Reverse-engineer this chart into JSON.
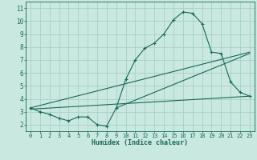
{
  "title": "",
  "xlabel": "Humidex (Indice chaleur)",
  "bg_color": "#c8e8e0",
  "grid_color": "#a8d0c8",
  "line_color": "#1a6858",
  "xlim": [
    -0.5,
    23.5
  ],
  "ylim": [
    1.5,
    11.5
  ],
  "xticks": [
    0,
    1,
    2,
    3,
    4,
    5,
    6,
    7,
    8,
    9,
    10,
    11,
    12,
    13,
    14,
    15,
    16,
    17,
    18,
    19,
    20,
    21,
    22,
    23
  ],
  "yticks": [
    2,
    3,
    4,
    5,
    6,
    7,
    8,
    9,
    10,
    11
  ],
  "line1_x": [
    0,
    1,
    2,
    3,
    4,
    5,
    6,
    7,
    8,
    9,
    10,
    11,
    12,
    13,
    14,
    15,
    16,
    17,
    18,
    19,
    20,
    21,
    22,
    23
  ],
  "line1_y": [
    3.3,
    3.0,
    2.8,
    2.5,
    2.3,
    2.6,
    2.6,
    2.0,
    1.9,
    3.3,
    5.5,
    7.0,
    7.9,
    8.3,
    9.0,
    10.1,
    10.7,
    10.6,
    9.8,
    7.6,
    7.5,
    5.3,
    4.5,
    4.2
  ],
  "line2_x": [
    0,
    23
  ],
  "line2_y": [
    3.3,
    7.6
  ],
  "line3_x": [
    0,
    23
  ],
  "line3_y": [
    3.2,
    4.2
  ],
  "line4_x": [
    9,
    23
  ],
  "line4_y": [
    3.3,
    7.5
  ]
}
